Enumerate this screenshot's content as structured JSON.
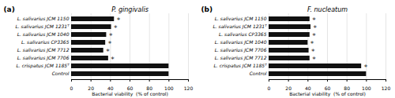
{
  "chart_data": [
    {
      "type": "bar",
      "orientation": "horizontal",
      "title": "P. gingivalis",
      "categories": [
        "L. salivarius JCM 1150",
        "L. salivarius JCM 1231ᵀ",
        "L. salivarius JCM 1040",
        "L. salivarius CP3365",
        "L. salivarius JCM 7712",
        "L. salivarius JCM 7706",
        "L. crispatus JCM 1185ᵀ",
        "Control"
      ],
      "values": [
        44,
        41,
        36,
        35,
        33,
        38,
        100,
        100
      ],
      "color": "#111111",
      "xlabel": "Bacterial viability  (% of control)",
      "xlim": [
        0,
        120
      ],
      "xticks": [
        0,
        20,
        40,
        60,
        80,
        100,
        120
      ],
      "grid": true,
      "annotations": [
        {
          "text": "(a)"
        },
        {
          "text": "*",
          "category": "L. salivarius JCM 1150",
          "color": "#222222"
        },
        {
          "text": "*",
          "category": "L. salivarius JCM 1231ᵀ",
          "color": "#222222"
        },
        {
          "text": "*",
          "category": "L. salivarius JCM 1040",
          "color": "#222222"
        },
        {
          "text": "*",
          "category": "L. salivarius CP3365",
          "color": "#222222"
        },
        {
          "text": "*",
          "category": "L. salivarius JCM 7712",
          "color": "#222222"
        },
        {
          "text": "*",
          "category": "L. salivarius JCM 7706",
          "color": "#222222"
        }
      ]
    },
    {
      "type": "bar",
      "orientation": "horizontal",
      "title": "F. nucleatum",
      "categories": [
        "L. salivarius JCM 1150",
        "L. salivarius JCM 1231ᵀ",
        "L. salivarius CP3365",
        "L. salivarius JCM 1040",
        "L. salivarius JCM 7706",
        "L. salivarius JCM 7712",
        "L. crispatus JCM 1185ᵀ",
        "Control"
      ],
      "values": [
        42,
        43,
        42,
        40,
        41,
        42,
        95,
        100
      ],
      "color": "#111111",
      "xlabel": "Bacterial viability  (% of control)",
      "xlim": [
        0,
        120
      ],
      "xticks": [
        0,
        20,
        40,
        60,
        80,
        100,
        120
      ],
      "grid": true,
      "annotations": [
        {
          "text": "(b)"
        },
        {
          "text": "*",
          "category": "L. salivarius JCM 1150",
          "color": "#222222"
        },
        {
          "text": "*",
          "category": "L. salivarius JCM 1231ᵀ",
          "color": "#222222"
        },
        {
          "text": "*",
          "category": "L. salivarius CP3365",
          "color": "#222222"
        },
        {
          "text": "*",
          "category": "L. salivarius JCM 1040",
          "color": "#222222"
        },
        {
          "text": "*",
          "category": "L. salivarius JCM 7706",
          "color": "#222222"
        },
        {
          "text": "*",
          "category": "L. salivarius JCM 7712",
          "color": "#222222"
        },
        {
          "text": "*",
          "category": "L. crispatus JCM 1185ᵀ",
          "color": "#222222"
        }
      ]
    }
  ]
}
